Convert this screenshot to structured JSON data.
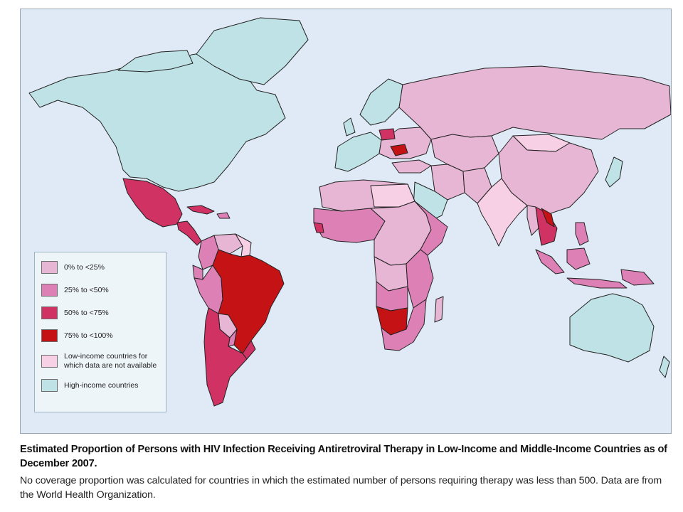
{
  "map": {
    "colors": {
      "ocean": "#dfeaf6",
      "border": "#222222",
      "c0_25": "#e8b6d5",
      "c25_50": "#dd80b6",
      "c50_75": "#cf3263",
      "c75_100": "#c51315",
      "na": "#f7d0e6",
      "high_income": "#bfe2e6"
    }
  },
  "legend": {
    "items": [
      {
        "label": "0% to <25%",
        "color": "#e8b6d5"
      },
      {
        "label": "25% to <50%",
        "color": "#dd80b6"
      },
      {
        "label": "50% to <75%",
        "color": "#cf3263"
      },
      {
        "label": "75% to <100%",
        "color": "#c51315"
      },
      {
        "label": "Low-income countries for\nwhich data are not available",
        "color": "#f7d0e6"
      },
      {
        "label": "High-income countries",
        "color": "#bfe2e6"
      }
    ]
  },
  "caption": {
    "title": "Estimated Proportion of Persons with HIV Infection Receiving Antiretroviral Therapy in Low-Income and Middle-Income Countries as of December 2007.",
    "body": "No coverage proportion was calculated for countries in which the estimated number of persons requiring therapy was less than 500. Data are from the World Health Organization."
  }
}
